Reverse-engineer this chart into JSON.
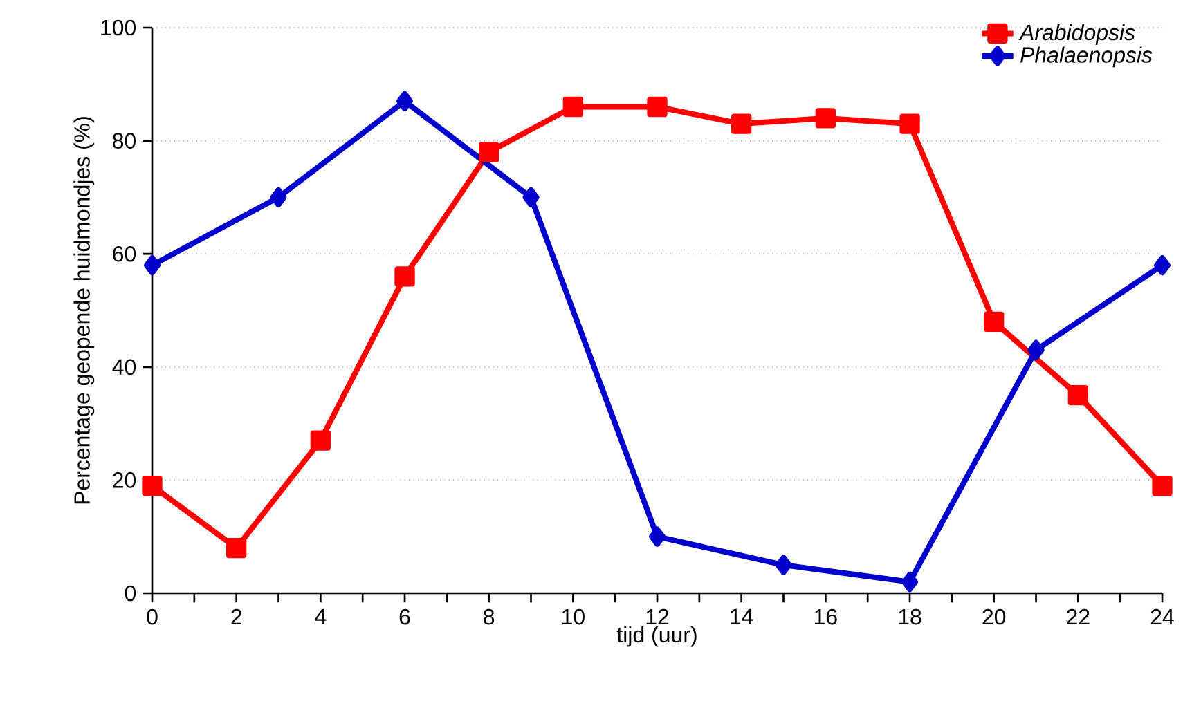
{
  "chart_data": {
    "type": "line",
    "xlabel": "tijd (uur)",
    "ylabel": "Percentage geopende huidmondjes (%)",
    "xlim": [
      0,
      24
    ],
    "ylim": [
      0,
      100
    ],
    "xticks": [
      0,
      {
        "value": 1,
        "label": null
      },
      2,
      {
        "value": 3,
        "label": null
      },
      4,
      {
        "value": 5,
        "label": null
      },
      6,
      {
        "value": 7,
        "label": null
      },
      8,
      {
        "value": 9,
        "label": null
      },
      10,
      {
        "value": 11,
        "label": null
      },
      12,
      {
        "value": 13,
        "label": null
      },
      14,
      {
        "value": 15,
        "label": null
      },
      16,
      {
        "value": 17,
        "label": null
      },
      18,
      {
        "value": 19,
        "label": null
      },
      20,
      {
        "value": 21,
        "label": null
      },
      22,
      {
        "value": 23,
        "label": null
      },
      24
    ],
    "yticks": [
      0,
      20,
      40,
      60,
      80,
      100
    ],
    "grid": "y",
    "legend": "top right",
    "line_style": "solid",
    "series": [
      {
        "name": "Arabidopsis",
        "color": "#ff0000",
        "marker": "square",
        "x": [
          0,
          2,
          4,
          6,
          8,
          10,
          12,
          14,
          16,
          18,
          20,
          22,
          24
        ],
        "values": [
          19,
          8,
          27,
          56,
          78,
          86,
          86,
          83,
          84,
          83,
          48,
          35,
          19
        ]
      },
      {
        "name": "Phalaenopsis",
        "color": "#0000cc",
        "marker": "diamond",
        "x": [
          0,
          3,
          6,
          9,
          12,
          15,
          18,
          21,
          24
        ],
        "values": [
          58,
          70,
          87,
          70,
          10,
          5,
          2,
          43,
          58
        ]
      }
    ]
  }
}
